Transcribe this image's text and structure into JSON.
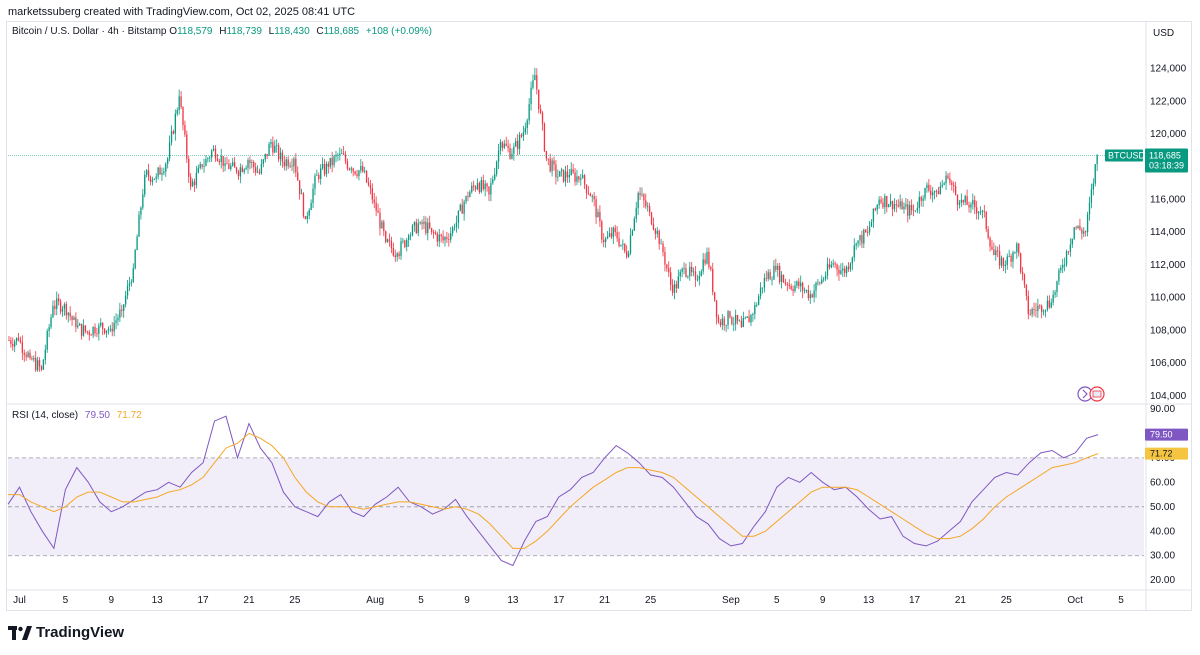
{
  "header": {
    "creator_text": "marketssuberg created with TradingView.com, Oct 02, 2025 08:41 UTC"
  },
  "legend": {
    "symbol_text": "Bitcoin / U.S. Dollar · 4h · Bitstamp",
    "open_label": "O",
    "open": "118,579",
    "high_label": "H",
    "high": "118,739",
    "low_label": "L",
    "low": "118,430",
    "close_label": "C",
    "close": "118,685",
    "change": "+108 (+0.09%)"
  },
  "rsi_legend": {
    "label": "RSI (14, close)",
    "rsi_value": "79.50",
    "ma_value": "71.72"
  },
  "axis": {
    "currency": "USD"
  },
  "price_tag": {
    "symbol": "BTCUSD",
    "price": "118,685",
    "countdown": "03:18:39"
  },
  "rsi_tags": {
    "rsi": "79.50",
    "ma": "71.72"
  },
  "footer": {
    "brand": "TradingView"
  },
  "colors": {
    "up": "#089981",
    "down": "#f23645",
    "rsi": "#7e57c2",
    "rsi_ma": "#f5a623",
    "rsi_band": "#ede7f6"
  },
  "chart_data": [
    {
      "type": "candlestick",
      "title": "",
      "ylim": [
        103500,
        125500
      ],
      "y_ticks": [
        "124,000",
        "122,000",
        "120,000",
        "118,000",
        "116,000",
        "114,000",
        "112,000",
        "110,000",
        "108,000",
        "106,000",
        "104,000"
      ],
      "y_tick_values": [
        124000,
        122000,
        120000,
        118000,
        116000,
        114000,
        112000,
        110000,
        108000,
        106000,
        104000
      ],
      "x_ticks": [
        "Jul",
        "5",
        "9",
        "13",
        "17",
        "21",
        "25",
        "Aug",
        "5",
        "9",
        "13",
        "17",
        "21",
        "25",
        "Sep",
        "5",
        "9",
        "13",
        "17",
        "21",
        "25",
        "Oct",
        "5"
      ],
      "x_tick_dates": [
        "2025-07-01",
        "2025-07-05",
        "2025-07-09",
        "2025-07-13",
        "2025-07-17",
        "2025-07-21",
        "2025-07-25",
        "2025-08-01",
        "2025-08-05",
        "2025-08-09",
        "2025-08-13",
        "2025-08-17",
        "2025-08-21",
        "2025-08-25",
        "2025-09-01",
        "2025-09-05",
        "2025-09-09",
        "2025-09-13",
        "2025-09-17",
        "2025-09-21",
        "2025-09-25",
        "2025-10-01",
        "2025-10-05"
      ],
      "x_range": [
        "2025-06-30",
        "2025-10-07"
      ],
      "last_price": 118685,
      "daily_closes": [
        [
          "2025-06-30",
          107400
        ],
        [
          "2025-07-01",
          106300
        ],
        [
          "2025-07-02",
          105600
        ],
        [
          "2025-07-03",
          109500
        ],
        [
          "2025-07-04",
          109600
        ],
        [
          "2025-07-05",
          108200
        ],
        [
          "2025-07-06",
          107900
        ],
        [
          "2025-07-07",
          108300
        ],
        [
          "2025-07-08",
          108100
        ],
        [
          "2025-07-09",
          109200
        ],
        [
          "2025-07-10",
          111800
        ],
        [
          "2025-07-11",
          117500
        ],
        [
          "2025-07-12",
          117400
        ],
        [
          "2025-07-13",
          118500
        ],
        [
          "2025-07-14",
          122300
        ],
        [
          "2025-07-15",
          116800
        ],
        [
          "2025-07-16",
          118000
        ],
        [
          "2025-07-17",
          119100
        ],
        [
          "2025-07-18",
          118200
        ],
        [
          "2025-07-19",
          117700
        ],
        [
          "2025-07-20",
          118400
        ],
        [
          "2025-07-21",
          117600
        ],
        [
          "2025-07-22",
          119500
        ],
        [
          "2025-07-23",
          118300
        ],
        [
          "2025-07-24",
          118500
        ],
        [
          "2025-07-25",
          114800
        ],
        [
          "2025-07-26",
          117500
        ],
        [
          "2025-07-27",
          118000
        ],
        [
          "2025-07-28",
          118800
        ],
        [
          "2025-07-29",
          117900
        ],
        [
          "2025-07-30",
          117700
        ],
        [
          "2025-07-31",
          115800
        ],
        [
          "2025-08-01",
          113400
        ],
        [
          "2025-08-02",
          112700
        ],
        [
          "2025-08-03",
          113800
        ],
        [
          "2025-08-04",
          114600
        ],
        [
          "2025-08-05",
          114000
        ],
        [
          "2025-08-06",
          113500
        ],
        [
          "2025-08-07",
          114300
        ],
        [
          "2025-08-08",
          116200
        ],
        [
          "2025-08-09",
          117000
        ],
        [
          "2025-08-10",
          116300
        ],
        [
          "2025-08-11",
          119500
        ],
        [
          "2025-08-12",
          118800
        ],
        [
          "2025-08-13",
          120100
        ],
        [
          "2025-08-14",
          123600
        ],
        [
          "2025-08-15",
          118500
        ],
        [
          "2025-08-16",
          117400
        ],
        [
          "2025-08-17",
          117500
        ],
        [
          "2025-08-18",
          117300
        ],
        [
          "2025-08-19",
          116200
        ],
        [
          "2025-08-20",
          113400
        ],
        [
          "2025-08-21",
          114000
        ],
        [
          "2025-08-22",
          112500
        ],
        [
          "2025-08-23",
          116400
        ],
        [
          "2025-08-24",
          115200
        ],
        [
          "2025-08-25",
          113300
        ],
        [
          "2025-08-26",
          110300
        ],
        [
          "2025-08-27",
          111800
        ],
        [
          "2025-08-28",
          111100
        ],
        [
          "2025-08-29",
          112800
        ],
        [
          "2025-08-30",
          108500
        ],
        [
          "2025-08-31",
          108800
        ],
        [
          "2025-09-01",
          108200
        ],
        [
          "2025-09-02",
          109000
        ],
        [
          "2025-09-03",
          111200
        ],
        [
          "2025-09-04",
          111700
        ],
        [
          "2025-09-05",
          110800
        ],
        [
          "2025-09-06",
          110700
        ],
        [
          "2025-09-07",
          110200
        ],
        [
          "2025-09-08",
          111100
        ],
        [
          "2025-09-09",
          112100
        ],
        [
          "2025-09-10",
          111500
        ],
        [
          "2025-09-11",
          113300
        ],
        [
          "2025-09-12",
          114000
        ],
        [
          "2025-09-13",
          116000
        ],
        [
          "2025-09-14",
          115900
        ],
        [
          "2025-09-15",
          115400
        ],
        [
          "2025-09-16",
          115300
        ],
        [
          "2025-09-17",
          116700
        ],
        [
          "2025-09-18",
          116500
        ],
        [
          "2025-09-19",
          117300
        ],
        [
          "2025-09-20",
          115800
        ],
        [
          "2025-09-21",
          115700
        ],
        [
          "2025-09-22",
          115300
        ],
        [
          "2025-09-23",
          112600
        ],
        [
          "2025-09-24",
          112000
        ],
        [
          "2025-09-25",
          113300
        ],
        [
          "2025-09-26",
          109000
        ],
        [
          "2025-09-27",
          109500
        ],
        [
          "2025-09-28",
          109700
        ],
        [
          "2025-09-29",
          112000
        ],
        [
          "2025-09-30",
          114300
        ],
        [
          "2025-10-01",
          114000
        ],
        [
          "2025-10-02",
          118700
        ]
      ]
    },
    {
      "type": "line",
      "title": "",
      "ylim": [
        16,
        92
      ],
      "y_ticks": [
        "90.00",
        "70.00",
        "60.00",
        "50.00",
        "40.00",
        "30.00",
        "20.00"
      ],
      "y_tick_values": [
        90,
        70,
        60,
        50,
        40,
        30,
        20
      ],
      "bands": {
        "upper": 70,
        "middle": 50,
        "lower": 30
      },
      "series": [
        {
          "name": "",
          "values": [
            51,
            58,
            48,
            40,
            33,
            57,
            66,
            60,
            52,
            48,
            50,
            53,
            56,
            57,
            60,
            58,
            64,
            68,
            85,
            87,
            70,
            84,
            74,
            68,
            56,
            50,
            48,
            46,
            52,
            55,
            48,
            46,
            51,
            54,
            58,
            52,
            50,
            47,
            49,
            53,
            46,
            40,
            34,
            28,
            26,
            36,
            44,
            46,
            54,
            57,
            62,
            64,
            70,
            75,
            72,
            68,
            63,
            62,
            58,
            52,
            46,
            43,
            37,
            34,
            35,
            42,
            48,
            58,
            62,
            60,
            64,
            60,
            57,
            58,
            54,
            49,
            45,
            46,
            38,
            35,
            34,
            36,
            40,
            44,
            52,
            57,
            62,
            64,
            63,
            68,
            72,
            73,
            70,
            72,
            78,
            79.5
          ]
        },
        {
          "name": "",
          "values": [
            55,
            55,
            52,
            50,
            48,
            50,
            54,
            56,
            56,
            54,
            52,
            52,
            53,
            54,
            56,
            57,
            59,
            62,
            68,
            74,
            76,
            80,
            78,
            75,
            70,
            62,
            56,
            52,
            50,
            50,
            50,
            49,
            50,
            51,
            52,
            52,
            51,
            50,
            49,
            50,
            49,
            47,
            43,
            38,
            33,
            33,
            36,
            40,
            45,
            50,
            54,
            58,
            61,
            64,
            66,
            66,
            65,
            64,
            62,
            58,
            54,
            50,
            46,
            42,
            38,
            38,
            40,
            44,
            48,
            52,
            56,
            58,
            58,
            58,
            57,
            54,
            51,
            48,
            45,
            42,
            39,
            37,
            37,
            38,
            41,
            45,
            50,
            54,
            57,
            60,
            63,
            66,
            67,
            68,
            70,
            71.72
          ]
        }
      ]
    }
  ]
}
